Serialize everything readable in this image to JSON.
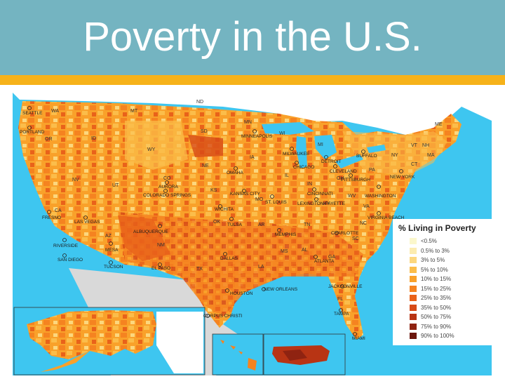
{
  "slide": {
    "title": "Poverty in the U.S."
  },
  "colors": {
    "banner": "#74b4c1",
    "accent": "#f6b21a",
    "water": "#3ec6f0",
    "land_base": "#f89a1e"
  },
  "legend": {
    "title": "% Living in Poverty",
    "items": [
      {
        "label": "<0.5%",
        "color": "#fbf7cc"
      },
      {
        "label": "0.5% to 3%",
        "color": "#fcecb0"
      },
      {
        "label": "3% to 5%",
        "color": "#fcd77e"
      },
      {
        "label": "5% to 10%",
        "color": "#fbbd4a"
      },
      {
        "label": "10% to 15%",
        "color": "#f9a12a"
      },
      {
        "label": "15% to 25%",
        "color": "#f58320"
      },
      {
        "label": "25% to 35%",
        "color": "#e9621a"
      },
      {
        "label": "35% to 50%",
        "color": "#d74a17"
      },
      {
        "label": "50% to 75%",
        "color": "#b83414"
      },
      {
        "label": "75% to 90%",
        "color": "#8f2311"
      },
      {
        "label": "90% to 100%",
        "color": "#6b170d"
      }
    ]
  },
  "state_labels": [
    "WA",
    "OR",
    "CA",
    "NV",
    "ID",
    "MT",
    "WY",
    "UT",
    "AZ",
    "NM",
    "CO",
    "ND",
    "SD",
    "NE",
    "KS",
    "OK",
    "TX",
    "MN",
    "IA",
    "MO",
    "AR",
    "LA",
    "WI",
    "IL",
    "MS",
    "AL",
    "TN",
    "KY",
    "IN",
    "MI",
    "OH",
    "GA",
    "FL",
    "SC",
    "NC",
    "VA",
    "WV",
    "PA",
    "NY",
    "VT",
    "NH",
    "ME",
    "MA",
    "CT"
  ],
  "cities": [
    "SEATTLE",
    "PORTLAND",
    "FRESNO",
    "LAS VEGAS",
    "RIVERSIDE",
    "SAN DIEGO",
    "MESA",
    "TUCSON",
    "ALBUQUERQUE",
    "EL PASO",
    "AURORA",
    "COLORADO SPRINGS",
    "MINNEAPOLIS",
    "OMAHA",
    "KANSAS CITY",
    "WICHITA",
    "TULSA",
    "DALLAS",
    "HOUSTON",
    "CORPUS CHRISTI",
    "MILWAUKEE",
    "CHICAGO",
    "DETROIT",
    "CLEVELAND",
    "PITTSBURGH",
    "BUFFALO",
    "ST. LOUIS",
    "CINCINNATI",
    "LEXINGTON-FAYETTE",
    "MEMPHIS",
    "NEW ORLEANS",
    "ATLANTA",
    "CHARLOTTE",
    "JACKSONVILLE",
    "TAMPA",
    "MIAMI",
    "WASHINGTON",
    "NEW YORK",
    "VIRGINIA BEACH"
  ]
}
